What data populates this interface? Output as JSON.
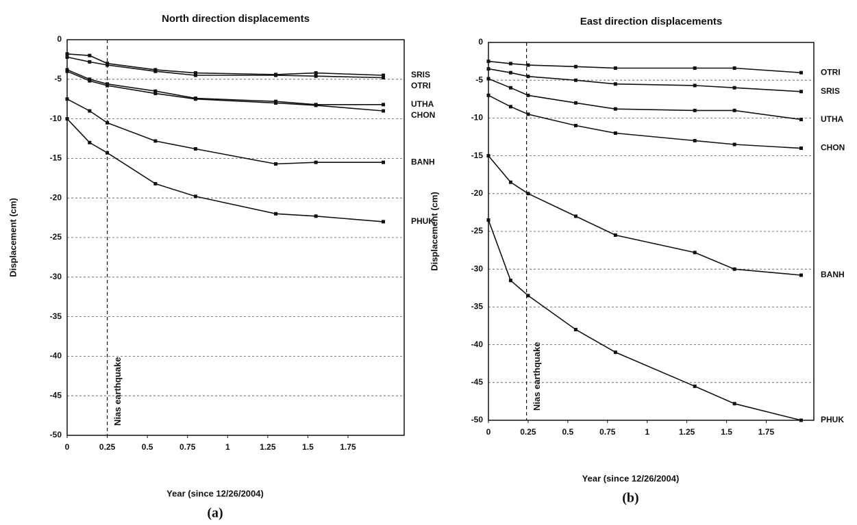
{
  "chart_data": [
    {
      "type": "line",
      "title": "North direction displacements",
      "xlabel": "Year (since 12/26/2004)",
      "ylabel": "Displacement (cm)",
      "panel_label": "(a)",
      "annotation": {
        "text": "Nias earthquake",
        "x": 0.25
      },
      "x": [
        0,
        0.14,
        0.25,
        0.55,
        0.8,
        1.3,
        1.55,
        1.97
      ],
      "xlim": [
        0,
        2.1
      ],
      "xticks": [
        0,
        0.25,
        0.5,
        0.75,
        1,
        1.25,
        1.5,
        1.75
      ],
      "ylim": [
        -50,
        0
      ],
      "yticks": [
        0,
        -5,
        -10,
        -15,
        -20,
        -25,
        -30,
        -35,
        -40,
        -45,
        -50
      ],
      "grid": true,
      "color": "#111111",
      "series": [
        {
          "name": "SRIS",
          "values": [
            -1.8,
            -2,
            -3,
            -3.8,
            -4.2,
            -4.4,
            -4.2,
            -4.5
          ]
        },
        {
          "name": "OTRI",
          "values": [
            -2.2,
            -2.8,
            -3.2,
            -4,
            -4.5,
            -4.5,
            -4.6,
            -4.8
          ]
        },
        {
          "name": "UTHA",
          "values": [
            -3.8,
            -5,
            -5.6,
            -6.5,
            -7.4,
            -7.8,
            -8.2,
            -8.2
          ]
        },
        {
          "name": "CHON",
          "values": [
            -4,
            -5.2,
            -5.8,
            -6.8,
            -7.5,
            -8,
            -8.3,
            -9
          ]
        },
        {
          "name": "BANH",
          "values": [
            -7.5,
            -9,
            -10.5,
            -12.8,
            -13.8,
            -15.7,
            -15.5,
            -15.5
          ]
        },
        {
          "name": "PHUK",
          "values": [
            -10,
            -13,
            -14.3,
            -18.2,
            -19.8,
            -22,
            -22.3,
            -23
          ]
        }
      ]
    },
    {
      "type": "line",
      "title": "East direction displacements",
      "xlabel": "Year (since 12/26/2004)",
      "ylabel": "Displacement (cm)",
      "panel_label": "(b)",
      "annotation": {
        "text": "Nias earthquake",
        "x": 0.24
      },
      "x": [
        0,
        0.14,
        0.25,
        0.55,
        0.8,
        1.3,
        1.55,
        1.97
      ],
      "xlim": [
        0,
        2.05
      ],
      "xticks": [
        0,
        0.25,
        0.5,
        0.75,
        1,
        1.25,
        1.5,
        1.75
      ],
      "ylim": [
        -50,
        0
      ],
      "yticks": [
        0,
        -5,
        -10,
        -15,
        -20,
        -25,
        -30,
        -35,
        -40,
        -45,
        -50
      ],
      "grid": true,
      "color": "#111111",
      "series": [
        {
          "name": "OTRI",
          "values": [
            -2.5,
            -2.8,
            -3,
            -3.2,
            -3.4,
            -3.4,
            -3.4,
            -4
          ]
        },
        {
          "name": "SRIS",
          "values": [
            -3.5,
            -4,
            -4.5,
            -5,
            -5.5,
            -5.7,
            -6,
            -6.5
          ]
        },
        {
          "name": "UTHA",
          "values": [
            -4.8,
            -6,
            -7,
            -8,
            -8.8,
            -9,
            -9,
            -10.2
          ]
        },
        {
          "name": "CHON",
          "values": [
            -7,
            -8.5,
            -9.5,
            -11,
            -12,
            -13,
            -13.5,
            -14
          ]
        },
        {
          "name": "BANH",
          "values": [
            -15,
            -18.5,
            -20,
            -23,
            -25.5,
            -27.8,
            -30,
            -30.8
          ]
        },
        {
          "name": "PHUK",
          "values": [
            -23.5,
            -31.5,
            -33.5,
            -38,
            -41,
            -45.5,
            -47.8,
            -50
          ]
        }
      ]
    }
  ]
}
